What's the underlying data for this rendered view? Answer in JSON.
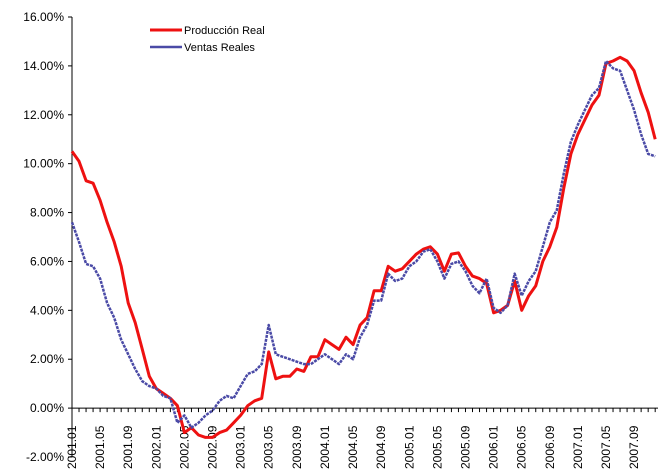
{
  "chart_data": {
    "type": "line",
    "categories": [
      "2001.01",
      null,
      null,
      null,
      "2001.05",
      null,
      null,
      null,
      "2001.09",
      null,
      null,
      null,
      "2002.01",
      null,
      null,
      null,
      "2002.05",
      null,
      null,
      null,
      "2002.09",
      null,
      null,
      null,
      "2003.01",
      null,
      null,
      null,
      "2003.05",
      null,
      null,
      null,
      "2003.09",
      null,
      null,
      null,
      "2004.01",
      null,
      null,
      null,
      "2004.05",
      null,
      null,
      null,
      "2004.09",
      null,
      null,
      null,
      "2005.01",
      null,
      null,
      null,
      "2005.05",
      null,
      null,
      null,
      "2005.09",
      null,
      null,
      null,
      "2006.01",
      null,
      null,
      null,
      "2006.05",
      null,
      null,
      null,
      "2006.09",
      null,
      null,
      null,
      "2007.01",
      null,
      null,
      null,
      "2007.05",
      null,
      null,
      null,
      "2007.09",
      null,
      null,
      null
    ],
    "series": [
      {
        "name": "Producción Real",
        "color": "#ee1111",
        "values": [
          10.5,
          10.1,
          9.3,
          9.2,
          8.5,
          7.6,
          6.8,
          5.8,
          4.3,
          3.5,
          2.4,
          1.3,
          0.8,
          0.6,
          0.4,
          0.1,
          -1.0,
          -0.8,
          -1.1,
          -1.2,
          -1.2,
          -1.0,
          -0.9,
          -0.6,
          -0.3,
          0.1,
          0.3,
          0.4,
          2.3,
          1.2,
          1.3,
          1.3,
          1.6,
          1.5,
          2.1,
          2.1,
          2.8,
          2.6,
          2.4,
          2.9,
          2.6,
          3.4,
          3.7,
          4.8,
          4.8,
          5.8,
          5.6,
          5.7,
          6.0,
          6.3,
          6.5,
          6.6,
          6.3,
          5.6,
          6.3,
          6.35,
          5.8,
          5.4,
          5.3,
          5.1,
          3.9,
          4.0,
          4.2,
          5.2,
          4.0,
          4.6,
          5.0,
          6.0,
          6.6,
          7.4,
          9.0,
          10.4,
          11.2,
          11.8,
          12.4,
          12.8,
          14.1,
          14.2,
          14.35,
          14.2,
          13.8,
          12.9,
          12.1,
          11.0
        ]
      },
      {
        "name": "Ventas Reales",
        "color": "#4a4aa6",
        "values": [
          7.6,
          6.8,
          5.9,
          5.8,
          5.3,
          4.3,
          3.7,
          2.8,
          2.2,
          1.6,
          1.1,
          0.9,
          0.8,
          0.5,
          0.4,
          -0.6,
          -0.3,
          -0.8,
          -0.6,
          -0.3,
          -0.1,
          0.3,
          0.5,
          0.4,
          0.9,
          1.4,
          1.5,
          1.8,
          3.4,
          2.2,
          2.1,
          2.0,
          1.9,
          1.8,
          1.8,
          2.0,
          2.2,
          2.0,
          1.8,
          2.2,
          2.0,
          2.9,
          3.4,
          4.4,
          4.4,
          5.5,
          5.2,
          5.3,
          5.8,
          6.0,
          6.4,
          6.5,
          6.0,
          5.3,
          5.9,
          6.0,
          5.6,
          5.0,
          4.7,
          5.3,
          4.1,
          3.9,
          4.2,
          5.5,
          4.6,
          5.2,
          5.6,
          6.6,
          7.6,
          8.1,
          9.6,
          10.9,
          11.6,
          12.2,
          12.8,
          13.1,
          14.2,
          13.9,
          13.8,
          13.0,
          12.2,
          11.2,
          10.4,
          10.3
        ]
      }
    ],
    "ylim": [
      -2,
      16
    ],
    "yticks": [
      {
        "value": -2,
        "label": "-2.00%"
      },
      {
        "value": 0,
        "label": "0.00%"
      },
      {
        "value": 2,
        "label": "2.00%"
      },
      {
        "value": 4,
        "label": "4.00%"
      },
      {
        "value": 6,
        "label": "6.00%"
      },
      {
        "value": 8,
        "label": "8.00%"
      },
      {
        "value": 10,
        "label": "10.00%"
      },
      {
        "value": 12,
        "label": "12.00%"
      },
      {
        "value": 14,
        "label": "14.00%"
      },
      {
        "value": 16,
        "label": "16.00%"
      }
    ],
    "grid": false,
    "legend": "top-left"
  }
}
